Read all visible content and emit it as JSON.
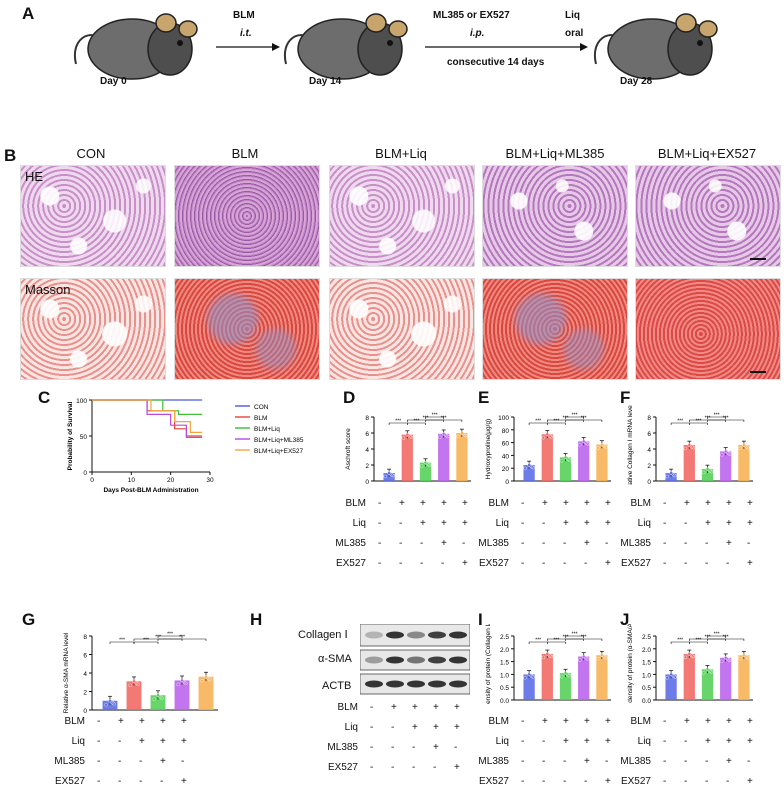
{
  "panels": {
    "A": "A",
    "B": "B",
    "C": "C",
    "D": "D",
    "E": "E",
    "F": "F",
    "G": "G",
    "H": "H",
    "I": "I",
    "J": "J"
  },
  "timeline": {
    "days": [
      "Day 0",
      "Day 14",
      "Day 28"
    ],
    "step1_top": "BLM",
    "step1_bottom": "i.t.",
    "step2_top_left": "ML385 or EX527",
    "step2_top_right": "Liq",
    "step2_mid_left": "i.p.",
    "step2_mid_right": "oral",
    "step2_bottom": "consecutive 14 days"
  },
  "histology": {
    "groups": [
      "CON",
      "BLM",
      "BLM+Liq",
      "BLM+Liq+ML385",
      "BLM+Liq+EX527"
    ],
    "rows": [
      "HE",
      "Masson"
    ]
  },
  "survival": {
    "ylabel": "Probability of Survival",
    "xlabel": "Days Post-BLM Administration",
    "legend": [
      "CON",
      "BLM",
      "BLM+Liq",
      "BLM+Liq+ML385",
      "BLM+Liq+EX527"
    ],
    "colors": [
      "#4a5bd6",
      "#e8403c",
      "#3fbf3a",
      "#b64be0",
      "#f5a53a"
    ],
    "yticks": [
      "0",
      "50",
      "100"
    ],
    "xticks": [
      "0",
      "10",
      "20",
      "30"
    ]
  },
  "treatment_rows": [
    "BLM",
    "Liq",
    "ML385",
    "EX527"
  ],
  "treatment_signs": {
    "BLM": [
      "-",
      "+",
      "+",
      "+",
      "+"
    ],
    "Liq": [
      "-",
      "-",
      "+",
      "+",
      "+"
    ],
    "ML385": [
      "-",
      "-",
      "-",
      "+",
      "-"
    ],
    "EX527": [
      "-",
      "-",
      "-",
      "-",
      "+"
    ]
  },
  "sig": "***",
  "bar_colors": [
    "#5e6ee6",
    "#f26a66",
    "#56d05a",
    "#bb66ec",
    "#f8b257"
  ],
  "chart_data": [
    {
      "panel": "D",
      "type": "bar",
      "ylabel": "Aschroft score",
      "yticks": [
        "0",
        "2",
        "4",
        "6",
        "8"
      ],
      "ylim": [
        0,
        8
      ],
      "values": [
        1.0,
        5.8,
        2.3,
        5.9,
        6.0
      ]
    },
    {
      "panel": "E",
      "type": "bar",
      "ylabel": "Hydroxyproline(μg/g)",
      "yticks": [
        "0",
        "20",
        "40",
        "60",
        "80",
        "100"
      ],
      "ylim": [
        0,
        100
      ],
      "values": [
        25,
        73,
        37,
        62,
        57
      ]
    },
    {
      "panel": "F",
      "type": "bar",
      "ylabel": "Relative Collagen Ⅰ mRNA level",
      "yticks": [
        "0",
        "2",
        "4",
        "6",
        "8"
      ],
      "ylim": [
        0,
        8
      ],
      "values": [
        1.0,
        4.5,
        1.5,
        3.7,
        4.5
      ]
    },
    {
      "panel": "G",
      "type": "bar",
      "ylabel": "Relative α-SMA mRNA level",
      "yticks": [
        "0",
        "2",
        "4",
        "6",
        "8"
      ],
      "ylim": [
        0,
        8
      ],
      "values": [
        1.0,
        3.1,
        1.6,
        3.2,
        3.6
      ]
    },
    {
      "panel": "I",
      "type": "bar",
      "ylabel": "Relative density of protein (Collagen Ⅰ/ACTB)",
      "yticks": [
        "0.0",
        "0.5",
        "1.0",
        "1.5",
        "2.0",
        "2.5"
      ],
      "ylim": [
        0,
        2.5
      ],
      "values": [
        1.0,
        1.8,
        1.05,
        1.7,
        1.75
      ]
    },
    {
      "panel": "J",
      "type": "bar",
      "ylabel": "Relative density of protein (α-SMA/ACTB)",
      "yticks": [
        "0.0",
        "0.5",
        "1.0",
        "1.5",
        "2.0",
        "2.5"
      ],
      "ylim": [
        0,
        2.5
      ],
      "values": [
        1.0,
        1.8,
        1.2,
        1.65,
        1.75
      ]
    },
    {
      "panel": "C",
      "type": "line",
      "xlim": [
        0,
        30
      ],
      "ylim": [
        0,
        100
      ],
      "series": [
        {
          "name": "CON",
          "x": [
            0,
            28
          ],
          "y": [
            100,
            100
          ]
        },
        {
          "name": "BLM",
          "x": [
            0,
            14,
            14,
            21,
            21,
            24,
            24,
            28
          ],
          "y": [
            100,
            100,
            85,
            85,
            60,
            60,
            50,
            50
          ]
        },
        {
          "name": "BLM+Liq",
          "x": [
            0,
            18,
            18,
            22,
            22,
            28
          ],
          "y": [
            100,
            100,
            85,
            85,
            80,
            80
          ]
        },
        {
          "name": "BLM+Liq+ML385",
          "x": [
            0,
            14,
            14,
            20,
            20,
            24,
            24,
            28
          ],
          "y": [
            100,
            100,
            80,
            80,
            65,
            65,
            48,
            48
          ]
        },
        {
          "name": "BLM+Liq+EX527",
          "x": [
            0,
            15,
            15,
            21,
            21,
            25,
            25,
            28
          ],
          "y": [
            100,
            100,
            85,
            85,
            70,
            70,
            55,
            55
          ]
        }
      ]
    }
  ],
  "western": {
    "rows": [
      "Collagen Ⅰ",
      "α-SMA",
      "ACTB"
    ]
  }
}
